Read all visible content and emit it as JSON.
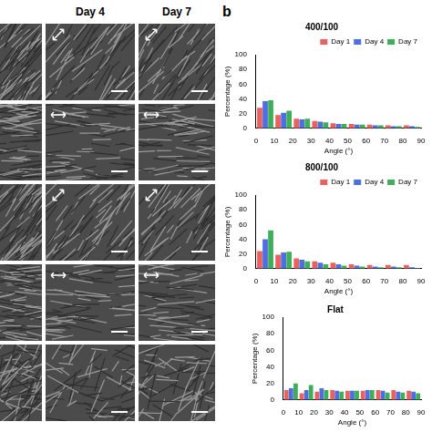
{
  "figure": {
    "column_headers": [
      "Day 4",
      "Day 7"
    ],
    "panel_label": "b"
  },
  "chart_data": [
    {
      "type": "bar",
      "title": "400/100",
      "x_label": "Angle (°)",
      "y_label": "Percentage (%)",
      "x": [
        5,
        15,
        25,
        35,
        45,
        55,
        65,
        75,
        85
      ],
      "xlim": [
        0,
        90
      ],
      "xticks": [
        0,
        10,
        20,
        30,
        40,
        50,
        60,
        70,
        80,
        90
      ],
      "ylim": [
        0,
        100
      ],
      "yticks": [
        0,
        20,
        40,
        60,
        80,
        100
      ],
      "grid": false,
      "legend": "upper right",
      "series": [
        {
          "name": "Day 1",
          "color": "#e8625f",
          "values": [
            28,
            18,
            13,
            10,
            7,
            6,
            5,
            4,
            4
          ]
        },
        {
          "name": "Day 4",
          "color": "#4f6ee0",
          "values": [
            37,
            21,
            12,
            9,
            6,
            5,
            4,
            3,
            3
          ]
        },
        {
          "name": "Day 7",
          "color": "#3fae5a",
          "values": [
            38,
            24,
            13,
            8,
            6,
            5,
            4,
            3,
            2
          ]
        }
      ]
    },
    {
      "type": "bar",
      "title": "800/100",
      "x_label": "Angle (°)",
      "y_label": "Percentage (%)",
      "x": [
        5,
        15,
        25,
        35,
        45,
        55,
        65,
        75,
        85
      ],
      "xlim": [
        0,
        90
      ],
      "xticks": [
        0,
        10,
        20,
        30,
        40,
        50,
        60,
        70,
        80,
        90
      ],
      "ylim": [
        0,
        100
      ],
      "yticks": [
        0,
        20,
        40,
        60,
        80,
        100
      ],
      "grid": false,
      "legend": "upper right",
      "series": [
        {
          "name": "Day 1",
          "color": "#e8625f",
          "values": [
            24,
            19,
            14,
            10,
            8,
            6,
            5,
            5,
            5
          ]
        },
        {
          "name": "Day 4",
          "color": "#4f6ee0",
          "values": [
            40,
            22,
            12,
            8,
            6,
            4,
            3,
            3,
            2
          ]
        },
        {
          "name": "Day 7",
          "color": "#3fae5a",
          "values": [
            52,
            23,
            10,
            6,
            4,
            3,
            2,
            2,
            1
          ]
        }
      ]
    },
    {
      "type": "bar",
      "title": "Flat",
      "x_label": "Angle (°)",
      "y_label": "Percentage (%)",
      "x": [
        5,
        15,
        25,
        35,
        45,
        55,
        65,
        75,
        85
      ],
      "xlim": [
        0,
        90
      ],
      "xticks": [
        0,
        10,
        20,
        30,
        40,
        50,
        60,
        70,
        80,
        90
      ],
      "ylim": [
        0,
        100
      ],
      "yticks": [
        0,
        20,
        40,
        60,
        80,
        100
      ],
      "grid": false,
      "series": [
        {
          "name": "Day 1",
          "color": "#e8625f",
          "values": [
            12,
            8,
            10,
            12,
            11,
            11,
            12,
            12,
            11
          ]
        },
        {
          "name": "Day 4",
          "color": "#4f6ee0",
          "values": [
            14,
            12,
            14,
            11,
            11,
            12,
            11,
            10,
            10
          ]
        },
        {
          "name": "Day 7",
          "color": "#3fae5a",
          "values": [
            20,
            18,
            12,
            10,
            11,
            12,
            9,
            9,
            8
          ]
        }
      ]
    }
  ]
}
